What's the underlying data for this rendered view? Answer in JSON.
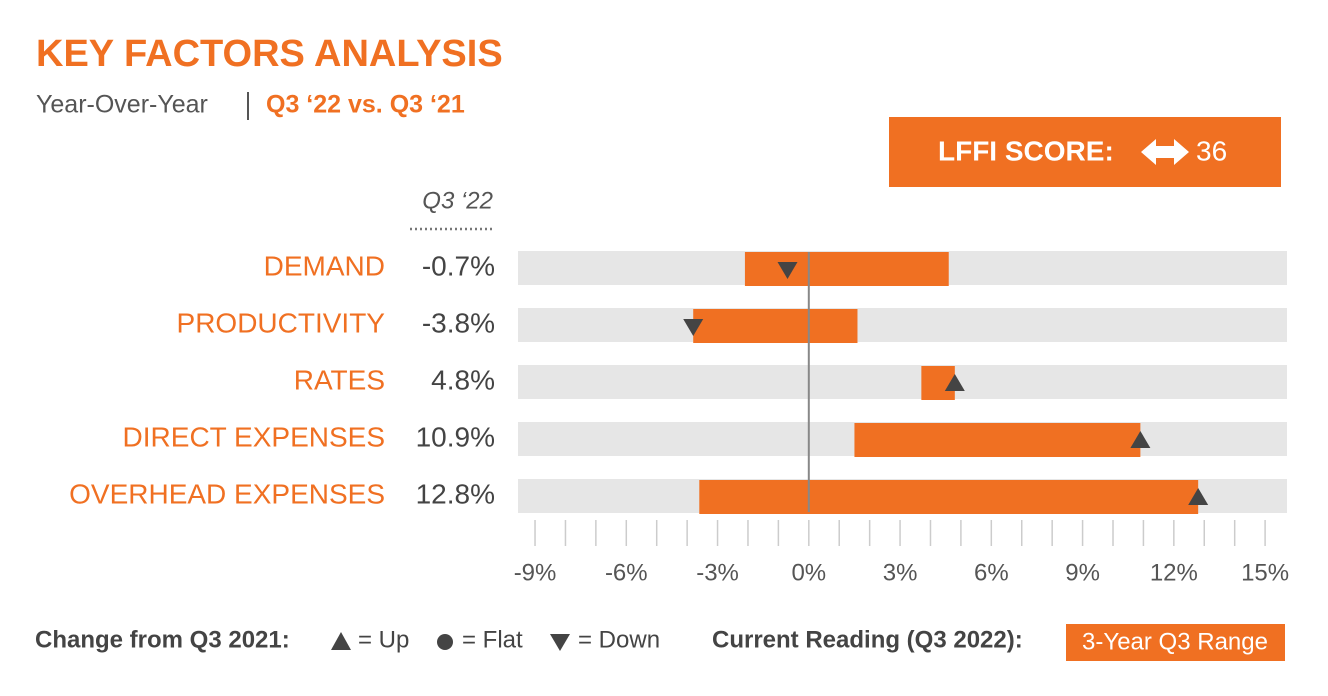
{
  "chart_data": {
    "type": "range-bar",
    "title": "KEY FACTORS ANALYSIS",
    "subtitle": "Year-Over-Year",
    "subtitle_period": "Q3 ‘22 vs. Q3 ‘21",
    "score_label": "LFFI SCORE:",
    "score": 36,
    "column_header": "Q3 ‘22",
    "categories": [
      "DEMAND",
      "PRODUCTIVITY",
      "RATES",
      "DIRECT EXPENSES",
      "OVERHEAD EXPENSES"
    ],
    "values": [
      -0.7,
      -3.8,
      4.8,
      10.9,
      12.8
    ],
    "value_labels": [
      "-0.7%",
      "-3.8%",
      "4.8%",
      "10.9%",
      "12.8%"
    ],
    "change": [
      "down",
      "down",
      "up",
      "up",
      "up"
    ],
    "series": [
      {
        "name": "3-Year Q3 Range",
        "color": "#f07022",
        "low": [
          -2.1,
          -3.8,
          3.7,
          1.5,
          -3.6
        ],
        "high": [
          4.6,
          1.6,
          4.8,
          10.9,
          12.8
        ]
      }
    ],
    "xlim": [
      -9.56,
      15.72
    ],
    "xticks": [
      {
        "value": -9,
        "label": "-9%"
      },
      {
        "value": -6,
        "label": "-6%"
      },
      {
        "value": -3,
        "label": "-3%"
      },
      {
        "value": 0,
        "label": "0%"
      },
      {
        "value": 3,
        "label": "3%"
      },
      {
        "value": 6,
        "label": "6%"
      },
      {
        "value": 9,
        "label": "9%"
      },
      {
        "value": 12,
        "label": "12%"
      },
      {
        "value": 15,
        "label": "15%"
      }
    ],
    "xticks_minor": [
      -8,
      -7,
      -5,
      -4,
      -2,
      -1,
      1,
      2,
      4,
      5,
      7,
      8,
      10,
      11,
      13,
      14
    ],
    "legend": {
      "change_title": "Change from Q3 2021:",
      "up": "= Up",
      "flat": "= Flat",
      "down": "= Down",
      "current_title": "Current Reading (Q3 2022):"
    }
  }
}
